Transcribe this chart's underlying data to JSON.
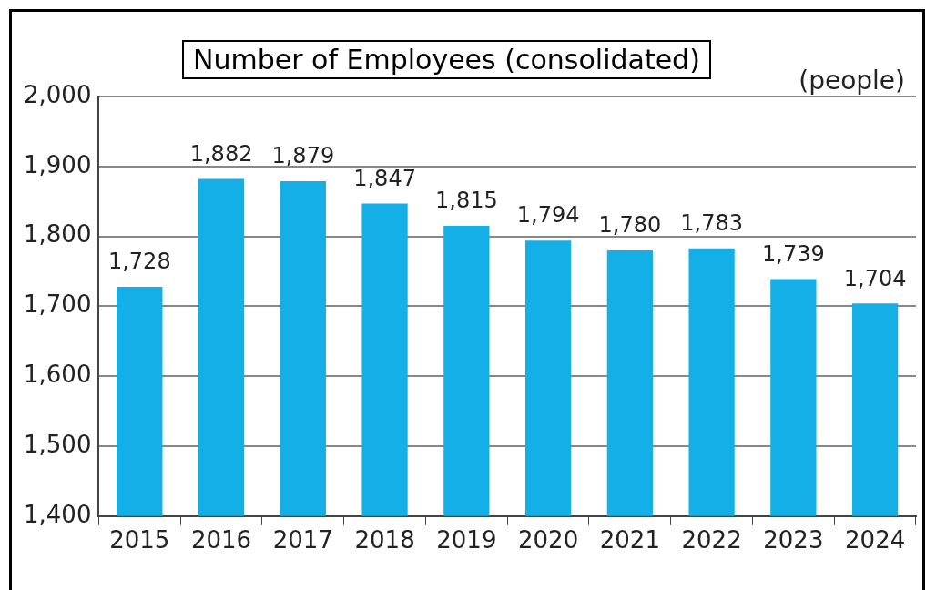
{
  "chart_data": {
    "type": "bar",
    "title": "Number of Employees (consolidated)",
    "ylabel": "(people)",
    "categories": [
      "2015",
      "2016",
      "2017",
      "2018",
      "2019",
      "2020",
      "2021",
      "2022",
      "2023",
      "2024"
    ],
    "values": [
      1728,
      1882,
      1879,
      1847,
      1815,
      1794,
      1780,
      1783,
      1739,
      1704
    ],
    "value_labels": [
      "1,728",
      "1,882",
      "1,879",
      "1,847",
      "1,815",
      "1,794",
      "1,780",
      "1,783",
      "1,739",
      "1,704"
    ],
    "color": "#14afe6",
    "ylim": [
      1400,
      2000
    ],
    "yticks": [
      {
        "value": 1400,
        "label": "1,400"
      },
      {
        "value": 1500,
        "label": "1,500"
      },
      {
        "value": 1600,
        "label": "1,600"
      },
      {
        "value": 1700,
        "label": "1,700"
      },
      {
        "value": 1800,
        "label": "1,800"
      },
      {
        "value": 1900,
        "label": "1,900"
      },
      {
        "value": 2000,
        "label": "2,000"
      }
    ],
    "grid": "y"
  }
}
